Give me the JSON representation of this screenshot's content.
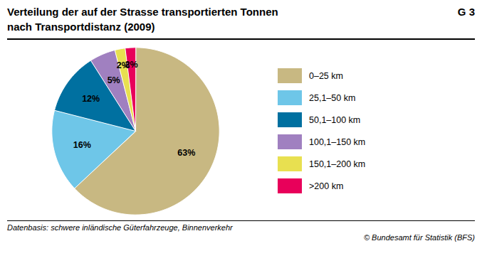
{
  "chart_data": {
    "type": "pie",
    "title": "Verteilung der auf der Strasse transportierten Tonnen",
    "subtitle": "nach Transportdistanz (2009)",
    "annotations": [
      "G 3",
      "Datenbasis: schwere inländische Güterfahrzeuge, Binnenverkehr",
      "© Bundesamt für Statistik (BFS)"
    ],
    "categories": [
      "0–25 km",
      "25,1–50 km",
      "50,1–100 km",
      "100,1–150 km",
      "150,1–200 km",
      ">200 km"
    ],
    "values": [
      63,
      16,
      12,
      5,
      2,
      2
    ],
    "value_labels": [
      "63%",
      "16%",
      "12%",
      "5%",
      "2%",
      "2%"
    ],
    "data_labels": true,
    "colors": [
      "#C8B882",
      "#6EC6E8",
      "#0070A0",
      "#A080C0",
      "#E8E050",
      "#E8005A"
    ],
    "legend": "right"
  }
}
